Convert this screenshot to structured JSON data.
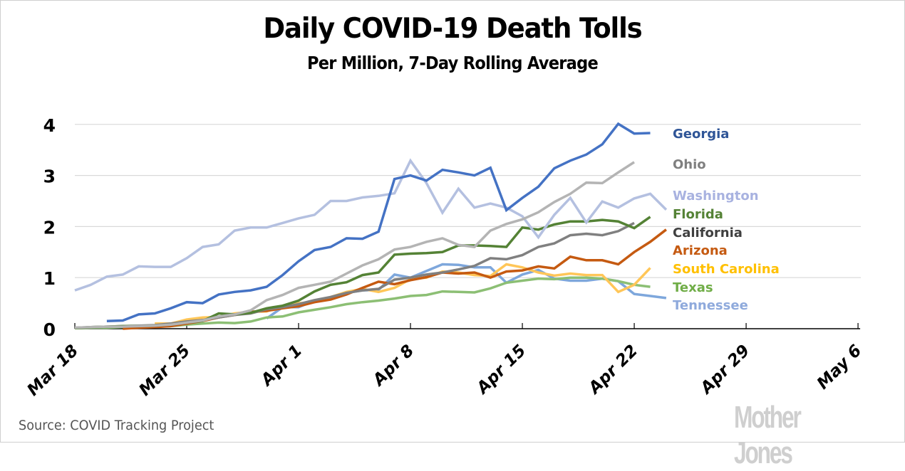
{
  "chart_data": {
    "type": "line",
    "title": "Daily COVID-19 Death Tolls",
    "subtitle": "Per Million, 7-Day Rolling Average",
    "xlabel": "",
    "ylabel": "",
    "ylim": [
      0,
      4
    ],
    "yticks": [
      "0",
      "1",
      "2",
      "3",
      "4"
    ],
    "xticks": [
      "Mar 18",
      "Mar 25",
      "Apr 1",
      "Apr 8",
      "Apr 15",
      "Apr 22",
      "Apr 29",
      "May 6"
    ],
    "x_range_days": [
      0,
      49
    ],
    "x_start_date": "Mar 18",
    "grid": "horizontal",
    "legend": "right (inline labels)",
    "series": [
      {
        "name": "Georgia",
        "color": "#4472c4",
        "label_color": "#2f5597",
        "start_day": 2,
        "values": [
          0.15,
          0.16,
          0.28,
          0.3,
          0.4,
          0.52,
          0.5,
          0.67,
          0.72,
          0.75,
          0.82,
          1.05,
          1.32,
          1.54,
          1.6,
          1.77,
          1.76,
          1.9,
          2.93,
          3.0,
          2.9,
          3.11,
          3.06,
          3.0,
          3.15,
          2.32,
          2.56,
          2.78,
          3.14,
          3.29,
          3.41,
          3.61,
          4.01,
          3.82,
          3.83
        ]
      },
      {
        "name": "Ohio",
        "color": "#b4b4b4",
        "label_color": "#7f7f7f",
        "start_day": 0,
        "values": [
          0.02,
          0.03,
          0.04,
          0.04,
          0.05,
          0.06,
          0.08,
          0.12,
          0.16,
          0.24,
          0.28,
          0.36,
          0.56,
          0.66,
          0.8,
          0.86,
          0.92,
          1.08,
          1.24,
          1.36,
          1.55,
          1.6,
          1.7,
          1.77,
          1.64,
          1.6,
          1.92,
          2.05,
          2.14,
          2.28,
          2.48,
          2.64,
          2.86,
          2.85,
          3.06,
          3.26
        ]
      },
      {
        "name": "Washington",
        "color": "#b4c0e0",
        "label_color": "#a8b2e0",
        "start_day": 0,
        "values": [
          0.75,
          0.86,
          1.02,
          1.06,
          1.22,
          1.21,
          1.21,
          1.38,
          1.6,
          1.65,
          1.92,
          1.98,
          1.98,
          2.07,
          2.16,
          2.23,
          2.5,
          2.5,
          2.57,
          2.6,
          2.65,
          3.29,
          2.85,
          2.27,
          2.74,
          2.37,
          2.45,
          2.37,
          2.2,
          1.79,
          2.23,
          2.56,
          2.08,
          2.49,
          2.37,
          2.55,
          2.64,
          2.33
        ]
      },
      {
        "name": "Florida",
        "color": "#548235",
        "label_color": "#548235",
        "start_day": 0,
        "values": [
          0.01,
          0.03,
          0.04,
          0.05,
          0.05,
          0.06,
          0.08,
          0.12,
          0.15,
          0.3,
          0.28,
          0.31,
          0.4,
          0.45,
          0.55,
          0.73,
          0.86,
          0.91,
          1.05,
          1.1,
          1.45,
          1.47,
          1.48,
          1.5,
          1.63,
          1.63,
          1.62,
          1.6,
          1.98,
          1.94,
          2.04,
          2.1,
          2.1,
          2.13,
          2.1,
          1.97,
          2.19
        ]
      },
      {
        "name": "California",
        "color": "#808080",
        "label_color": "#404040",
        "start_day": 0,
        "values": [
          0.02,
          0.03,
          0.04,
          0.05,
          0.06,
          0.07,
          0.1,
          0.14,
          0.17,
          0.22,
          0.27,
          0.3,
          0.38,
          0.42,
          0.48,
          0.56,
          0.62,
          0.7,
          0.75,
          0.78,
          0.96,
          1.0,
          1.06,
          1.1,
          1.16,
          1.23,
          1.38,
          1.36,
          1.44,
          1.6,
          1.67,
          1.83,
          1.86,
          1.83,
          1.91,
          2.07
        ]
      },
      {
        "name": "Arizona",
        "color": "#c55a11",
        "label_color": "#c55a11",
        "start_day": 3,
        "values": [
          0.0,
          0.02,
          0.03,
          0.05,
          0.1,
          0.15,
          0.22,
          0.27,
          0.33,
          0.35,
          0.4,
          0.44,
          0.52,
          0.57,
          0.67,
          0.8,
          0.92,
          0.87,
          0.95,
          1.01,
          1.1,
          1.08,
          1.1,
          1.0,
          1.12,
          1.14,
          1.22,
          1.18,
          1.41,
          1.34,
          1.34,
          1.26,
          1.5,
          1.7,
          1.94
        ]
      },
      {
        "name": "South Carolina",
        "color": "#ffc658",
        "label_color": "#ffc000",
        "start_day": 5,
        "values": [
          0.1,
          0.1,
          0.18,
          0.22,
          0.23,
          0.3,
          0.33,
          0.34,
          0.45,
          0.5,
          0.52,
          0.62,
          0.72,
          0.78,
          0.72,
          0.8,
          0.97,
          1.0,
          1.12,
          1.1,
          1.05,
          1.03,
          1.26,
          1.2,
          1.1,
          1.04,
          1.08,
          1.05,
          1.05,
          0.72,
          0.86,
          1.19
        ]
      },
      {
        "name": "Texas",
        "color": "#8cbf74",
        "label_color": "#70ad47",
        "start_day": 0,
        "values": [
          0.01,
          0.02,
          0.02,
          0.03,
          0.03,
          0.04,
          0.05,
          0.08,
          0.1,
          0.12,
          0.11,
          0.14,
          0.22,
          0.24,
          0.32,
          0.37,
          0.42,
          0.48,
          0.52,
          0.55,
          0.59,
          0.64,
          0.66,
          0.73,
          0.72,
          0.71,
          0.79,
          0.9,
          0.94,
          0.98,
          0.97,
          1.0,
          1.0,
          0.98,
          0.93,
          0.86,
          0.82
        ]
      },
      {
        "name": "Tennessee",
        "color": "#7ea7dc",
        "label_color": "#8faadc",
        "start_day": 12,
        "values": [
          0.2,
          0.42,
          0.42,
          0.55,
          0.6,
          0.7,
          0.75,
          0.76,
          1.06,
          1.0,
          1.13,
          1.26,
          1.25,
          1.2,
          1.2,
          0.9,
          1.06,
          1.15,
          0.98,
          0.94,
          0.94,
          0.98,
          0.93,
          0.68,
          0.64,
          0.6
        ]
      }
    ]
  },
  "footer": {
    "source": "Source: COVID Tracking Project",
    "brand": "Mother Jones"
  }
}
